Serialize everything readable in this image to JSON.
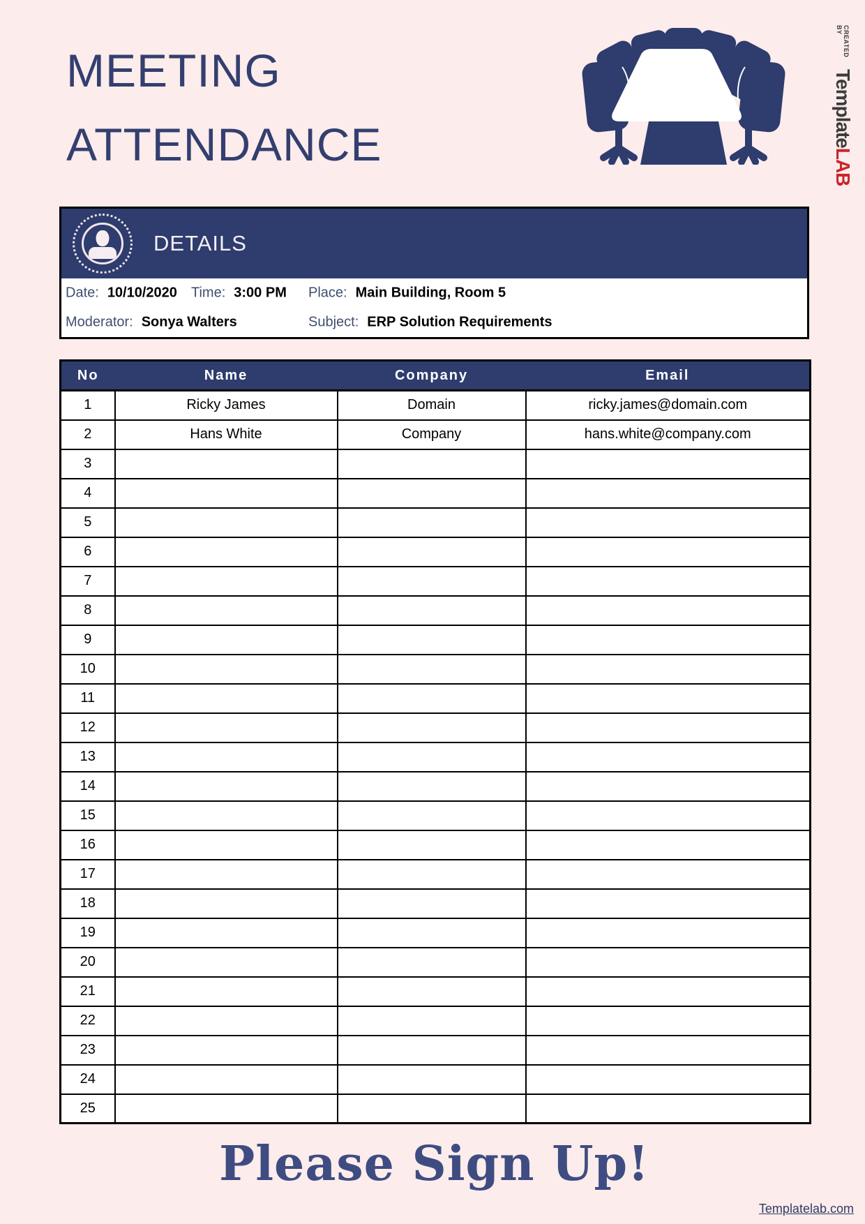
{
  "colors": {
    "navy": "#2e3c6e",
    "pink": "#fceceb",
    "red": "#c9252b",
    "title_blue": "#333f6f",
    "label_blue": "#3f4e70",
    "signup_blue": "#3e4c82"
  },
  "header": {
    "title_line1": "MEETING",
    "title_line2": "ATTENDANCE",
    "icon": "conference-table-with-chairs"
  },
  "logo": {
    "created_by": "CREATED BY",
    "name_part1": "Template",
    "name_part2": "LAB"
  },
  "details": {
    "title": "DETAILS",
    "icon": "person-in-dotted-circle",
    "fields": [
      {
        "label": "Date:",
        "value": "10/10/2020"
      },
      {
        "label": "Time:",
        "value": "3:00 PM"
      },
      {
        "label": "Place:",
        "value": "Main Building, Room 5"
      },
      {
        "label": "Moderator:",
        "value": "Sonya Walters"
      },
      {
        "label": "Subject:",
        "value": "ERP Solution Requirements"
      }
    ]
  },
  "attendance": {
    "columns": [
      "No",
      "Name",
      "Company",
      "Email"
    ],
    "rows": [
      {
        "no": "1",
        "name": "Ricky James",
        "company": "Domain",
        "email": "ricky.james@domain.com"
      },
      {
        "no": "2",
        "name": "Hans White",
        "company": "Company",
        "email": "hans.white@company.com"
      },
      {
        "no": "3",
        "name": "",
        "company": "",
        "email": ""
      },
      {
        "no": "4",
        "name": "",
        "company": "",
        "email": ""
      },
      {
        "no": "5",
        "name": "",
        "company": "",
        "email": ""
      },
      {
        "no": "6",
        "name": "",
        "company": "",
        "email": ""
      },
      {
        "no": "7",
        "name": "",
        "company": "",
        "email": ""
      },
      {
        "no": "8",
        "name": "",
        "company": "",
        "email": ""
      },
      {
        "no": "9",
        "name": "",
        "company": "",
        "email": ""
      },
      {
        "no": "10",
        "name": "",
        "company": "",
        "email": ""
      },
      {
        "no": "11",
        "name": "",
        "company": "",
        "email": ""
      },
      {
        "no": "12",
        "name": "",
        "company": "",
        "email": ""
      },
      {
        "no": "13",
        "name": "",
        "company": "",
        "email": ""
      },
      {
        "no": "14",
        "name": "",
        "company": "",
        "email": ""
      },
      {
        "no": "15",
        "name": "",
        "company": "",
        "email": ""
      },
      {
        "no": "16",
        "name": "",
        "company": "",
        "email": ""
      },
      {
        "no": "17",
        "name": "",
        "company": "",
        "email": ""
      },
      {
        "no": "18",
        "name": "",
        "company": "",
        "email": ""
      },
      {
        "no": "19",
        "name": "",
        "company": "",
        "email": ""
      },
      {
        "no": "20",
        "name": "",
        "company": "",
        "email": ""
      },
      {
        "no": "21",
        "name": "",
        "company": "",
        "email": ""
      },
      {
        "no": "22",
        "name": "",
        "company": "",
        "email": ""
      },
      {
        "no": "23",
        "name": "",
        "company": "",
        "email": ""
      },
      {
        "no": "24",
        "name": "",
        "company": "",
        "email": ""
      },
      {
        "no": "25",
        "name": "",
        "company": "",
        "email": ""
      }
    ]
  },
  "footer": {
    "cta": "Please Sign Up!",
    "website": "Templatelab.com"
  }
}
